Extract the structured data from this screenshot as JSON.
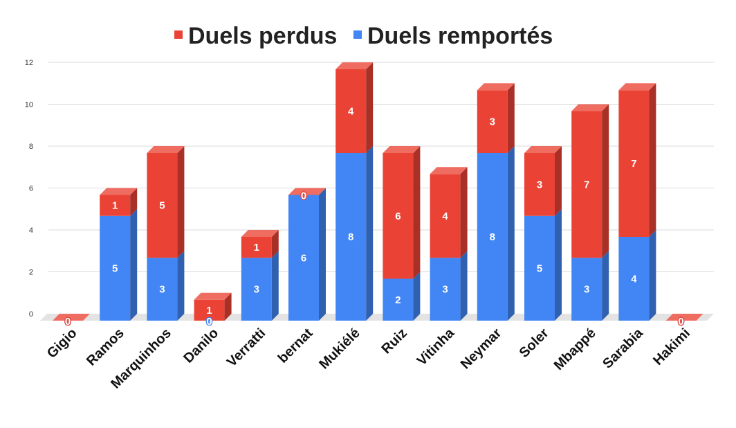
{
  "chart_data": {
    "type": "bar",
    "stacked": true,
    "style": "3d",
    "categories": [
      "Gigio",
      "Ramos",
      "Marquinhos",
      "Danilo",
      "Verratti",
      "bernat",
      "Mukiélé",
      "Ruiz",
      "Vitinha",
      "Neymar",
      "Soler",
      "Mbappé",
      "Sarabia",
      "Hakimi"
    ],
    "series": [
      {
        "name": "Duels remportés",
        "color": "#4285F4",
        "values": [
          0,
          5,
          3,
          0,
          3,
          6,
          8,
          2,
          3,
          8,
          5,
          3,
          4,
          0
        ]
      },
      {
        "name": "Duels perdus",
        "color": "#EA4335",
        "values": [
          0,
          1,
          5,
          1,
          1,
          0,
          4,
          6,
          4,
          3,
          3,
          7,
          7,
          0
        ]
      }
    ],
    "legend_order": [
      "Duels perdus",
      "Duels remportés"
    ],
    "legend_position": "top",
    "yticks": [
      "0",
      "2",
      "4",
      "6",
      "8",
      "10",
      "12"
    ],
    "ylim": [
      0,
      12
    ],
    "grid": true,
    "title": "",
    "xlabel": "",
    "ylabel": ""
  }
}
